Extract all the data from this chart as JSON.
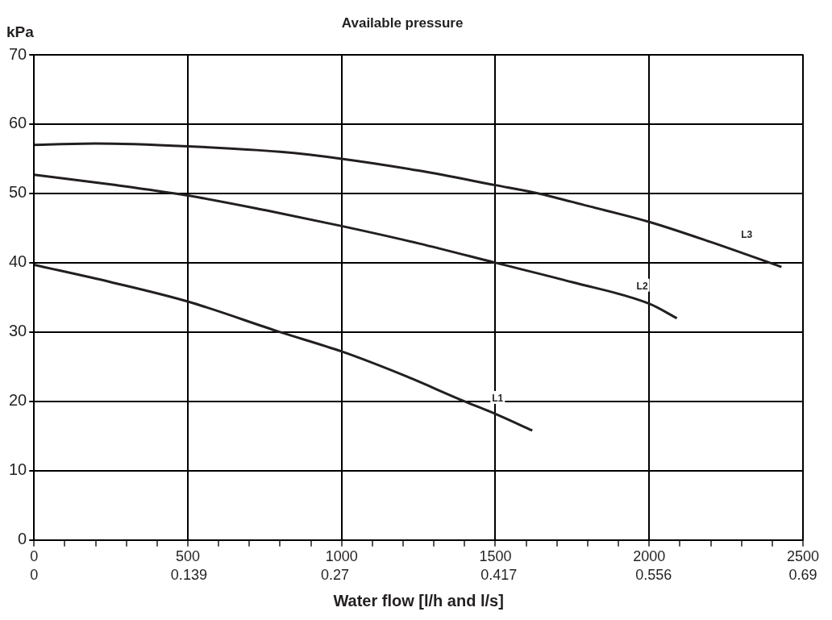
{
  "chart_data": {
    "type": "line",
    "title": "Available pressure",
    "xlabel": "Water flow [l/h and l/s]",
    "ylabel": "kPa",
    "x": [
      0,
      200,
      500,
      800,
      1000,
      1250,
      1500,
      1640,
      1800,
      2000,
      2200,
      2430
    ],
    "series": [
      {
        "name": "L3",
        "color": "#231f20",
        "values": [
          57,
          57.2,
          56.8,
          56,
          55,
          53.3,
          51.2,
          50,
          48.2,
          45.9,
          43,
          39.4
        ]
      },
      {
        "name": "L2",
        "color": "#231f20",
        "x": [
          0,
          250,
          500,
          750,
          1000,
          1250,
          1500,
          1750,
          2000,
          2090
        ],
        "values": [
          52.7,
          51.3,
          49.7,
          47.6,
          45.3,
          42.8,
          40,
          37.2,
          34.1,
          32
        ]
      },
      {
        "name": "L1",
        "color": "#231f20",
        "x": [
          0,
          250,
          500,
          800,
          1000,
          1200,
          1400,
          1500,
          1620
        ],
        "values": [
          39.7,
          37.2,
          34.4,
          30,
          27.2,
          23.8,
          20,
          18.2,
          15.8
        ]
      }
    ],
    "xlim": [
      0,
      2500
    ],
    "xticks": [
      0,
      {
        "value": 100,
        "label": null
      },
      {
        "value": 200,
        "label": null
      },
      {
        "value": 300,
        "label": null
      },
      {
        "value": 400,
        "label": null
      },
      500,
      {
        "value": 600,
        "label": null
      },
      {
        "value": 700,
        "label": null
      },
      {
        "value": 800,
        "label": null
      },
      {
        "value": 900,
        "label": null
      },
      1000,
      {
        "value": 1100,
        "label": null
      },
      {
        "value": 1200,
        "label": null
      },
      {
        "value": 1300,
        "label": null
      },
      {
        "value": 1400,
        "label": null
      },
      1500,
      {
        "value": 1600,
        "label": null
      },
      {
        "value": 1700,
        "label": null
      },
      {
        "value": 1800,
        "label": null
      },
      {
        "value": 1900,
        "label": null
      },
      2000,
      {
        "value": 2100,
        "label": null
      },
      {
        "value": 2200,
        "label": null
      },
      {
        "value": 2300,
        "label": null
      },
      {
        "value": 2400,
        "label": null
      },
      2500
    ],
    "x2lim": [
      0,
      0.69
    ],
    "x2ticks": [
      0,
      0.139,
      0.27,
      0.417,
      0.556,
      0.69
    ],
    "ylim": [
      0,
      70
    ],
    "yticks": [
      0,
      10,
      20,
      30,
      40,
      50,
      60,
      70
    ],
    "grid": true,
    "legend": false,
    "marker": "none",
    "line_style": "solid"
  }
}
